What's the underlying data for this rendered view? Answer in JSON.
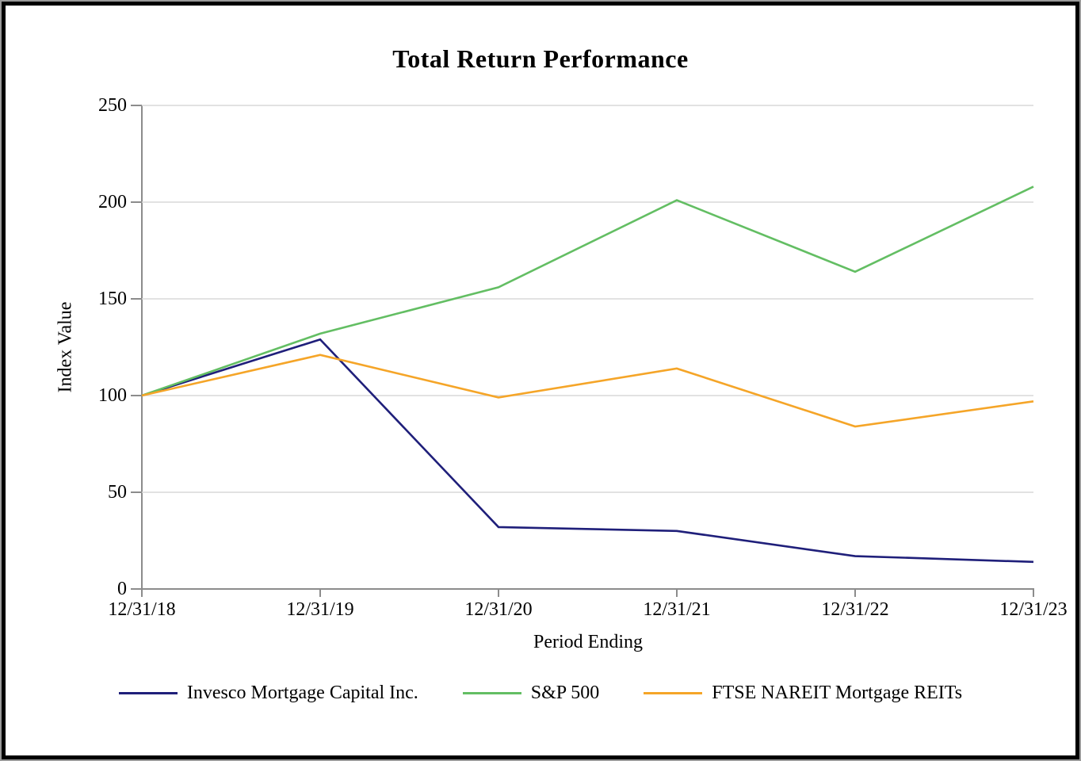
{
  "chart_data": {
    "type": "line",
    "title": "Total Return Performance",
    "xlabel": "Period Ending",
    "ylabel": "Index Value",
    "categories": [
      "12/31/18",
      "12/31/19",
      "12/31/20",
      "12/31/21",
      "12/31/22",
      "12/31/23"
    ],
    "series": [
      {
        "name": "Invesco Mortgage Capital Inc.",
        "color": "#1F1F7A",
        "values": [
          100,
          129,
          32,
          30,
          17,
          14
        ]
      },
      {
        "name": "S&P 500",
        "color": "#63BE63",
        "values": [
          100,
          132,
          156,
          201,
          164,
          208
        ]
      },
      {
        "name": "FTSE NAREIT Mortgage REITs",
        "color": "#F5A528",
        "values": [
          100,
          121,
          99,
          114,
          84,
          97
        ]
      }
    ],
    "ylim": [
      0,
      250
    ],
    "yticks": [
      0,
      50,
      100,
      150,
      200,
      250
    ],
    "grid": "horizontal-only",
    "legend_position": "bottom"
  },
  "colors": {
    "gridline": "#D9D9D9",
    "axis": "#8C8C8C",
    "border": "#000000",
    "text": "#000000"
  }
}
